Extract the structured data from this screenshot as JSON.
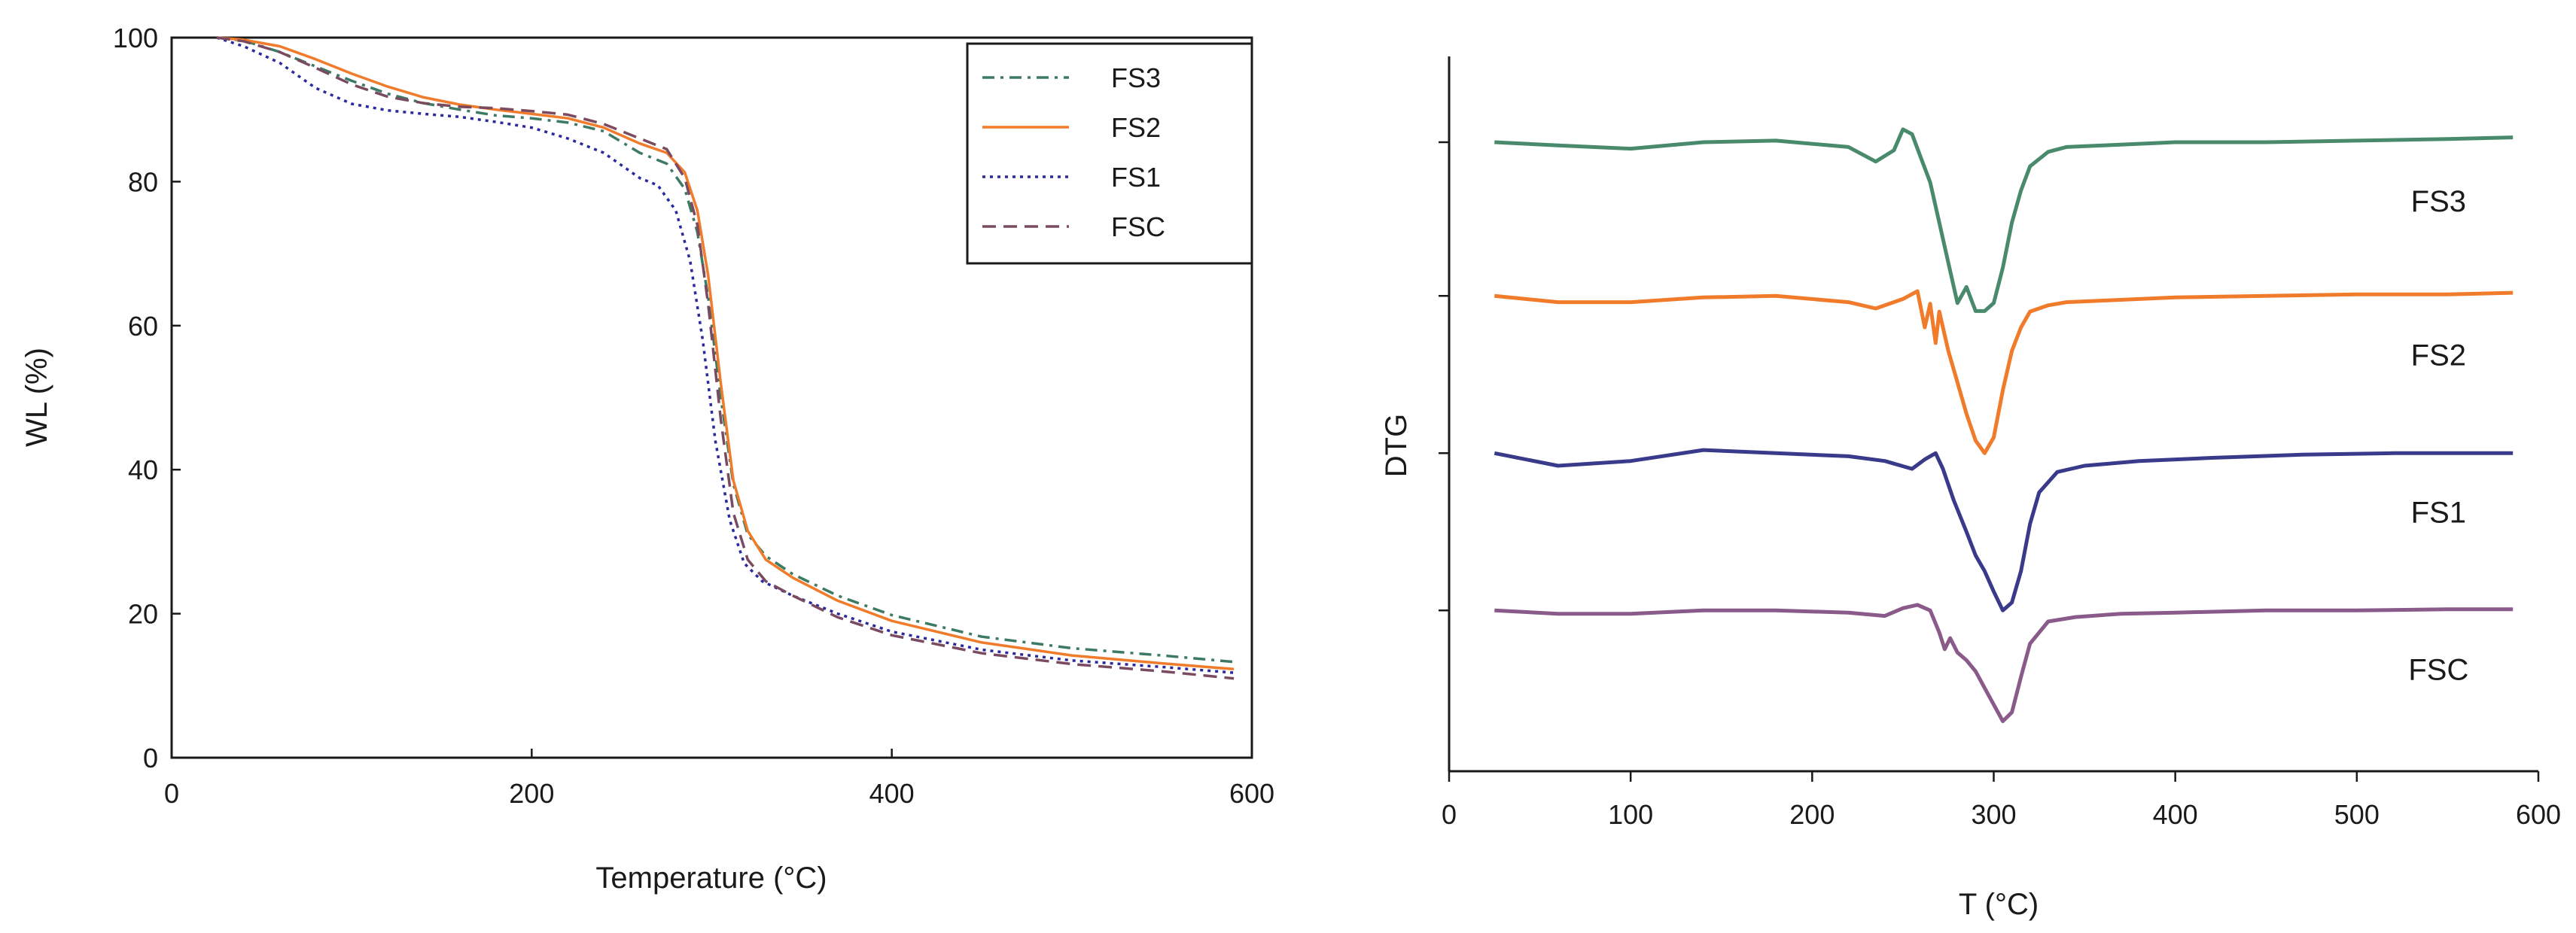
{
  "chart_data": [
    {
      "type": "line",
      "title": "",
      "xlabel": "Temperature (°C)",
      "ylabel": "WL (%)",
      "xlim": [
        0,
        600
      ],
      "ylim": [
        0,
        100
      ],
      "xticks": [
        0,
        200,
        400,
        600
      ],
      "yticks": [
        0,
        20,
        40,
        60,
        80,
        100
      ],
      "grid": false,
      "legend": "top-right",
      "series": [
        {
          "name": "FS3",
          "color": "#3d7a64",
          "dash": "dashdot",
          "x": [
            25,
            40,
            60,
            80,
            100,
            120,
            140,
            160,
            180,
            200,
            220,
            240,
            260,
            275,
            285,
            292,
            298,
            305,
            312,
            320,
            330,
            345,
            370,
            400,
            450,
            500,
            550,
            590
          ],
          "y": [
            100,
            99.6,
            98,
            96,
            94,
            92.2,
            90.9,
            90,
            89.2,
            88.8,
            88.2,
            87,
            84,
            82.5,
            79,
            73,
            64,
            50,
            38,
            31,
            28,
            25.5,
            22.5,
            19.8,
            16.8,
            15.2,
            14.2,
            13.3
          ]
        },
        {
          "name": "FS2",
          "color": "#f07b2a",
          "dash": "solid",
          "x": [
            25,
            40,
            60,
            80,
            100,
            120,
            140,
            160,
            180,
            200,
            220,
            240,
            260,
            275,
            285,
            292,
            298,
            305,
            312,
            320,
            330,
            345,
            370,
            400,
            450,
            500,
            550,
            590
          ],
          "y": [
            100,
            99.7,
            98.8,
            97,
            95,
            93.2,
            91.7,
            90.7,
            90,
            89.4,
            88.8,
            87.5,
            85.3,
            84,
            81.3,
            76,
            67,
            52,
            38.5,
            31.5,
            27.5,
            25,
            21.8,
            19,
            16,
            14.2,
            13.1,
            12.3
          ]
        },
        {
          "name": "FS1",
          "color": "#2a2a9e",
          "dash": "dotted",
          "x": [
            25,
            40,
            60,
            80,
            100,
            120,
            140,
            160,
            180,
            200,
            220,
            240,
            260,
            270,
            280,
            288,
            295,
            302,
            310,
            318,
            328,
            345,
            370,
            400,
            450,
            500,
            550,
            590
          ],
          "y": [
            100,
            98.8,
            96.5,
            93,
            90.8,
            89.9,
            89.4,
            89,
            88.3,
            87.5,
            86,
            84,
            80.5,
            79.5,
            76,
            69,
            58,
            44,
            33,
            27,
            24.5,
            22.5,
            20,
            17.5,
            15,
            13.5,
            12.6,
            11.8
          ]
        },
        {
          "name": "FSC",
          "color": "#7a4a60",
          "dash": "dashed",
          "x": [
            25,
            40,
            60,
            80,
            100,
            120,
            140,
            160,
            180,
            200,
            220,
            240,
            260,
            275,
            285,
            292,
            298,
            305,
            312,
            320,
            330,
            345,
            370,
            400,
            450,
            500,
            550,
            590
          ],
          "y": [
            100,
            99.5,
            98,
            95.8,
            93.5,
            91.8,
            90.9,
            90.4,
            90.2,
            89.8,
            89.3,
            88,
            86,
            84.5,
            80.5,
            74,
            63,
            47,
            34,
            27.5,
            24.5,
            22.5,
            19.5,
            17,
            14.5,
            13,
            12,
            11
          ]
        }
      ]
    },
    {
      "type": "line",
      "title": "",
      "xlabel": "T (°C)",
      "ylabel": "DTG",
      "xlim": [
        0,
        600
      ],
      "xticks": [
        0,
        100,
        200,
        300,
        400,
        500,
        600
      ],
      "grid": false,
      "legend": "labels on curves",
      "series": [
        {
          "name": "FS3",
          "color": "#4a8a6c",
          "baseline": 0.88,
          "depth": 0.225,
          "x": [
            25,
            60,
            100,
            140,
            180,
            220,
            235,
            245,
            250,
            255,
            260,
            265,
            270,
            275,
            280,
            285,
            290,
            295,
            300,
            305,
            310,
            315,
            320,
            330,
            340,
            360,
            400,
            450,
            500,
            550,
            586
          ],
          "y": [
            0,
            -0.02,
            -0.04,
            0,
            0.01,
            -0.03,
            -0.12,
            -0.05,
            0.08,
            0.05,
            -0.1,
            -0.25,
            -0.5,
            -0.75,
            -1.0,
            -0.9,
            -1.05,
            -1.05,
            -1.0,
            -0.78,
            -0.5,
            -0.3,
            -0.15,
            -0.06,
            -0.03,
            -0.02,
            0,
            0,
            0.01,
            0.02,
            0.03
          ]
        },
        {
          "name": "FS2",
          "color": "#f07b2a",
          "baseline": 0.665,
          "depth": 0.22,
          "x": [
            25,
            60,
            100,
            140,
            180,
            220,
            235,
            250,
            258,
            262,
            265,
            268,
            270,
            275,
            280,
            285,
            290,
            295,
            300,
            305,
            310,
            315,
            320,
            330,
            340,
            360,
            400,
            450,
            500,
            550,
            586
          ],
          "y": [
            0,
            -0.04,
            -0.04,
            -0.01,
            0,
            -0.04,
            -0.08,
            -0.02,
            0.03,
            -0.2,
            -0.05,
            -0.3,
            -0.1,
            -0.35,
            -0.55,
            -0.75,
            -0.92,
            -1.0,
            -0.9,
            -0.6,
            -0.35,
            -0.2,
            -0.1,
            -0.06,
            -0.04,
            -0.03,
            -0.01,
            0,
            0.01,
            0.01,
            0.02
          ]
        },
        {
          "name": "FS1",
          "color": "#3a3a8a",
          "baseline": 0.445,
          "depth": 0.22,
          "x": [
            25,
            60,
            100,
            140,
            180,
            220,
            240,
            255,
            262,
            268,
            272,
            278,
            285,
            290,
            295,
            300,
            305,
            310,
            315,
            320,
            325,
            335,
            350,
            380,
            420,
            470,
            520,
            586
          ],
          "y": [
            0,
            -0.08,
            -0.05,
            0.02,
            0,
            -0.02,
            -0.05,
            -0.1,
            -0.04,
            0.0,
            -0.1,
            -0.3,
            -0.5,
            -0.65,
            -0.75,
            -0.88,
            -1.0,
            -0.95,
            -0.75,
            -0.45,
            -0.25,
            -0.12,
            -0.08,
            -0.05,
            -0.03,
            -0.01,
            0,
            0
          ]
        },
        {
          "name": "FSC",
          "color": "#8a5a8a",
          "baseline": 0.225,
          "depth": 0.155,
          "x": [
            25,
            60,
            100,
            140,
            180,
            220,
            240,
            250,
            258,
            265,
            270,
            273,
            276,
            280,
            285,
            290,
            295,
            300,
            305,
            310,
            315,
            320,
            330,
            345,
            370,
            400,
            450,
            500,
            550,
            586
          ],
          "y": [
            0,
            -0.03,
            -0.03,
            0,
            0,
            -0.02,
            -0.05,
            0.02,
            0.05,
            0,
            -0.2,
            -0.35,
            -0.25,
            -0.38,
            -0.45,
            -0.55,
            -0.7,
            -0.85,
            -1.0,
            -0.92,
            -0.6,
            -0.3,
            -0.1,
            -0.06,
            -0.03,
            -0.02,
            0,
            0,
            0.01,
            0.01
          ]
        }
      ]
    }
  ]
}
